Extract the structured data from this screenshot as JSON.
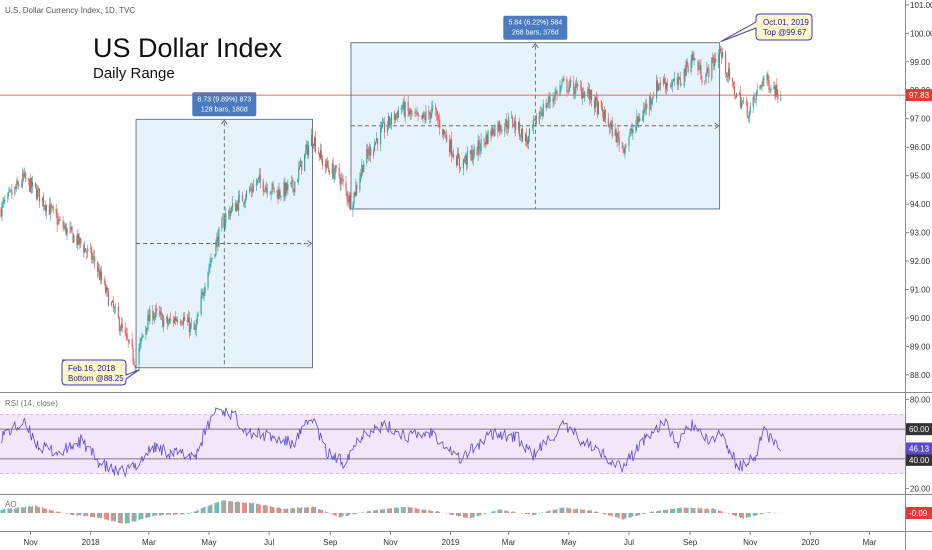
{
  "header": {
    "symbol": "U.S. Dollar Currency Index, 1D, TVC"
  },
  "title": "US Dollar Index",
  "subtitle": "Daily Range",
  "colors": {
    "up": "#26a69a",
    "down": "#ef5350",
    "rsi": "#5b4ccf",
    "price_line": "#e53935",
    "box_fill": "#e6f2fc",
    "box_stroke": "#4a5a70",
    "label_blue": "#4a7bc0",
    "callout_bg": "#fff6c9",
    "callout_border": "#3b3bb8"
  },
  "chart_data": [
    {
      "type": "candlestick",
      "name": "price",
      "y_ticks": [
        "101.00",
        "100.00",
        "99.00",
        "98.00",
        "97.00",
        "96.00",
        "95.00",
        "94.00",
        "93.00",
        "92.00",
        "91.00",
        "90.00",
        "89.00",
        "88.00"
      ],
      "ylim": [
        87.4,
        101.1
      ],
      "last_price": "97.83",
      "last_price_value": 97.83,
      "x_labels": [
        "Nov",
        "2018",
        "Mar",
        "May",
        "Jul",
        "Sep",
        "Nov",
        "2019",
        "Mar",
        "May",
        "Jul",
        "Sep",
        "Nov",
        "2020",
        "Mar"
      ],
      "x_label_dates": [
        "2017-11-01",
        "2018-01-01",
        "2018-03-01",
        "2018-05-01",
        "2018-07-01",
        "2018-09-01",
        "2018-11-01",
        "2019-01-01",
        "2019-03-01",
        "2019-05-01",
        "2019-07-01",
        "2019-09-01",
        "2019-11-01",
        "2020-01-01",
        "2020-03-01"
      ],
      "x_range": [
        "2017-10-01",
        "2020-04-06"
      ],
      "key_points": [
        {
          "date": "2017-10-01",
          "value": 93.8
        },
        {
          "date": "2017-10-25",
          "value": 94.9
        },
        {
          "date": "2017-11-10",
          "value": 94.3
        },
        {
          "date": "2017-12-01",
          "value": 93.3
        },
        {
          "date": "2017-12-22",
          "value": 92.6
        },
        {
          "date": "2018-01-05",
          "value": 92.0
        },
        {
          "date": "2018-01-12",
          "value": 91.3
        },
        {
          "date": "2018-01-20",
          "value": 90.6
        },
        {
          "date": "2018-01-30",
          "value": 89.8
        },
        {
          "date": "2018-02-16",
          "value": 88.4
        },
        {
          "date": "2018-02-25",
          "value": 89.7
        },
        {
          "date": "2018-03-05",
          "value": 90.2
        },
        {
          "date": "2018-03-20",
          "value": 89.8
        },
        {
          "date": "2018-04-01",
          "value": 90.1
        },
        {
          "date": "2018-04-17",
          "value": 89.5
        },
        {
          "date": "2018-04-28",
          "value": 91.5
        },
        {
          "date": "2018-05-08",
          "value": 92.6
        },
        {
          "date": "2018-05-18",
          "value": 93.6
        },
        {
          "date": "2018-06-01",
          "value": 94.1
        },
        {
          "date": "2018-06-20",
          "value": 94.8
        },
        {
          "date": "2018-07-10",
          "value": 94.4
        },
        {
          "date": "2018-07-25",
          "value": 94.6
        },
        {
          "date": "2018-08-14",
          "value": 96.4
        },
        {
          "date": "2018-08-25",
          "value": 95.4
        },
        {
          "date": "2018-09-10",
          "value": 95.0
        },
        {
          "date": "2018-09-22",
          "value": 94.0
        },
        {
          "date": "2018-10-05",
          "value": 95.5
        },
        {
          "date": "2018-10-20",
          "value": 96.4
        },
        {
          "date": "2018-11-12",
          "value": 97.4
        },
        {
          "date": "2018-12-01",
          "value": 96.9
        },
        {
          "date": "2018-12-14",
          "value": 97.3
        },
        {
          "date": "2019-01-10",
          "value": 95.4
        },
        {
          "date": "2019-01-25",
          "value": 95.8
        },
        {
          "date": "2019-02-15",
          "value": 96.7
        },
        {
          "date": "2019-03-05",
          "value": 96.9
        },
        {
          "date": "2019-03-20",
          "value": 96.2
        },
        {
          "date": "2019-04-01",
          "value": 97.2
        },
        {
          "date": "2019-04-25",
          "value": 98.2
        },
        {
          "date": "2019-05-20",
          "value": 97.9
        },
        {
          "date": "2019-06-05",
          "value": 97.1
        },
        {
          "date": "2019-06-25",
          "value": 96.0
        },
        {
          "date": "2019-07-10",
          "value": 96.9
        },
        {
          "date": "2019-08-01",
          "value": 98.3
        },
        {
          "date": "2019-08-20",
          "value": 98.2
        },
        {
          "date": "2019-09-03",
          "value": 99.2
        },
        {
          "date": "2019-09-15",
          "value": 98.4
        },
        {
          "date": "2019-10-01",
          "value": 99.4
        },
        {
          "date": "2019-10-15",
          "value": 98.0
        },
        {
          "date": "2019-10-31",
          "value": 97.2
        },
        {
          "date": "2019-11-14",
          "value": 98.4
        },
        {
          "date": "2019-11-22",
          "value": 98.2
        },
        {
          "date": "2019-12-02",
          "value": 97.8
        }
      ],
      "boxes": [
        {
          "start": "2018-02-16",
          "end": "2018-08-14",
          "low": 88.25,
          "high": 96.98,
          "label_line1": "8.73 (9.89%) 873",
          "label_line2": "128 bars, 180d"
        },
        {
          "start": "2018-09-22",
          "end": "2019-10-01",
          "low": 93.83,
          "high": 99.67,
          "label_line1": "5.84 (6.22%) 584",
          "label_line2": "268 bars, 376d"
        }
      ],
      "annotations": [
        {
          "date": "2018-02-16",
          "value": 88.25,
          "line1": "Feb.16, 2018",
          "line2": "Bottom @88.25"
        },
        {
          "date": "2019-10-01",
          "value": 99.67,
          "line1": "Oct.01, 2019",
          "line2": "Top @99.67"
        }
      ]
    },
    {
      "type": "line",
      "name": "RSI",
      "label": "RSI (14, close)",
      "y_ticks": [
        "80.00",
        "60.00",
        "40.00",
        "20.00"
      ],
      "ylim": [
        17,
        83
      ],
      "upper_band": 70,
      "lower_band": 30,
      "upper_line": 60,
      "lower_line": 40,
      "upper_line_label": "60.00",
      "lower_line_label": "40.00",
      "last_value": "46.13",
      "key_points": [
        {
          "date": "2017-10-01",
          "value": 55
        },
        {
          "date": "2017-10-25",
          "value": 64
        },
        {
          "date": "2017-11-10",
          "value": 48
        },
        {
          "date": "2017-12-01",
          "value": 44
        },
        {
          "date": "2017-12-22",
          "value": 52
        },
        {
          "date": "2018-01-12",
          "value": 36
        },
        {
          "date": "2018-01-30",
          "value": 30
        },
        {
          "date": "2018-02-16",
          "value": 36
        },
        {
          "date": "2018-03-05",
          "value": 48
        },
        {
          "date": "2018-03-25",
          "value": 44
        },
        {
          "date": "2018-04-17",
          "value": 42
        },
        {
          "date": "2018-05-08",
          "value": 74
        },
        {
          "date": "2018-05-25",
          "value": 70
        },
        {
          "date": "2018-06-10",
          "value": 58
        },
        {
          "date": "2018-07-01",
          "value": 55
        },
        {
          "date": "2018-07-25",
          "value": 50
        },
        {
          "date": "2018-08-14",
          "value": 68
        },
        {
          "date": "2018-08-28",
          "value": 44
        },
        {
          "date": "2018-09-14",
          "value": 38
        },
        {
          "date": "2018-10-05",
          "value": 58
        },
        {
          "date": "2018-10-28",
          "value": 62
        },
        {
          "date": "2018-11-20",
          "value": 55
        },
        {
          "date": "2018-12-14",
          "value": 58
        },
        {
          "date": "2019-01-10",
          "value": 40
        },
        {
          "date": "2019-02-15",
          "value": 58
        },
        {
          "date": "2019-03-10",
          "value": 54
        },
        {
          "date": "2019-03-25",
          "value": 42
        },
        {
          "date": "2019-04-25",
          "value": 62
        },
        {
          "date": "2019-05-20",
          "value": 50
        },
        {
          "date": "2019-06-25",
          "value": 34
        },
        {
          "date": "2019-07-15",
          "value": 52
        },
        {
          "date": "2019-08-05",
          "value": 65
        },
        {
          "date": "2019-08-20",
          "value": 50
        },
        {
          "date": "2019-09-03",
          "value": 64
        },
        {
          "date": "2019-09-20",
          "value": 50
        },
        {
          "date": "2019-10-01",
          "value": 58
        },
        {
          "date": "2019-10-20",
          "value": 34
        },
        {
          "date": "2019-11-05",
          "value": 40
        },
        {
          "date": "2019-11-14",
          "value": 58
        },
        {
          "date": "2019-11-22",
          "value": 54
        },
        {
          "date": "2019-12-02",
          "value": 46
        }
      ]
    },
    {
      "type": "histogram",
      "name": "AO",
      "label": "AO",
      "last_value": "-0.09",
      "key_points": [
        {
          "date": "2017-10-01",
          "value": 0.5
        },
        {
          "date": "2017-11-05",
          "value": 1.0
        },
        {
          "date": "2017-12-10",
          "value": -0.2
        },
        {
          "date": "2018-01-10",
          "value": -0.7
        },
        {
          "date": "2018-02-05",
          "value": -1.6
        },
        {
          "date": "2018-03-05",
          "value": -0.4
        },
        {
          "date": "2018-04-10",
          "value": -0.1
        },
        {
          "date": "2018-05-15",
          "value": 1.8
        },
        {
          "date": "2018-06-15",
          "value": 1.4
        },
        {
          "date": "2018-07-15",
          "value": 0.6
        },
        {
          "date": "2018-08-15",
          "value": 0.9
        },
        {
          "date": "2018-09-10",
          "value": -0.6
        },
        {
          "date": "2018-10-15",
          "value": 0.4
        },
        {
          "date": "2018-11-15",
          "value": 0.9
        },
        {
          "date": "2018-12-20",
          "value": 0.2
        },
        {
          "date": "2019-01-20",
          "value": -0.8
        },
        {
          "date": "2019-02-20",
          "value": 0.5
        },
        {
          "date": "2019-03-25",
          "value": -0.3
        },
        {
          "date": "2019-04-25",
          "value": 0.8
        },
        {
          "date": "2019-05-25",
          "value": 0.3
        },
        {
          "date": "2019-06-25",
          "value": -0.9
        },
        {
          "date": "2019-07-25",
          "value": 0.2
        },
        {
          "date": "2019-08-25",
          "value": 0.8
        },
        {
          "date": "2019-09-25",
          "value": 0.6
        },
        {
          "date": "2019-10-25",
          "value": -0.8
        },
        {
          "date": "2019-11-20",
          "value": 0.1
        },
        {
          "date": "2019-12-02",
          "value": -0.09
        }
      ]
    }
  ]
}
